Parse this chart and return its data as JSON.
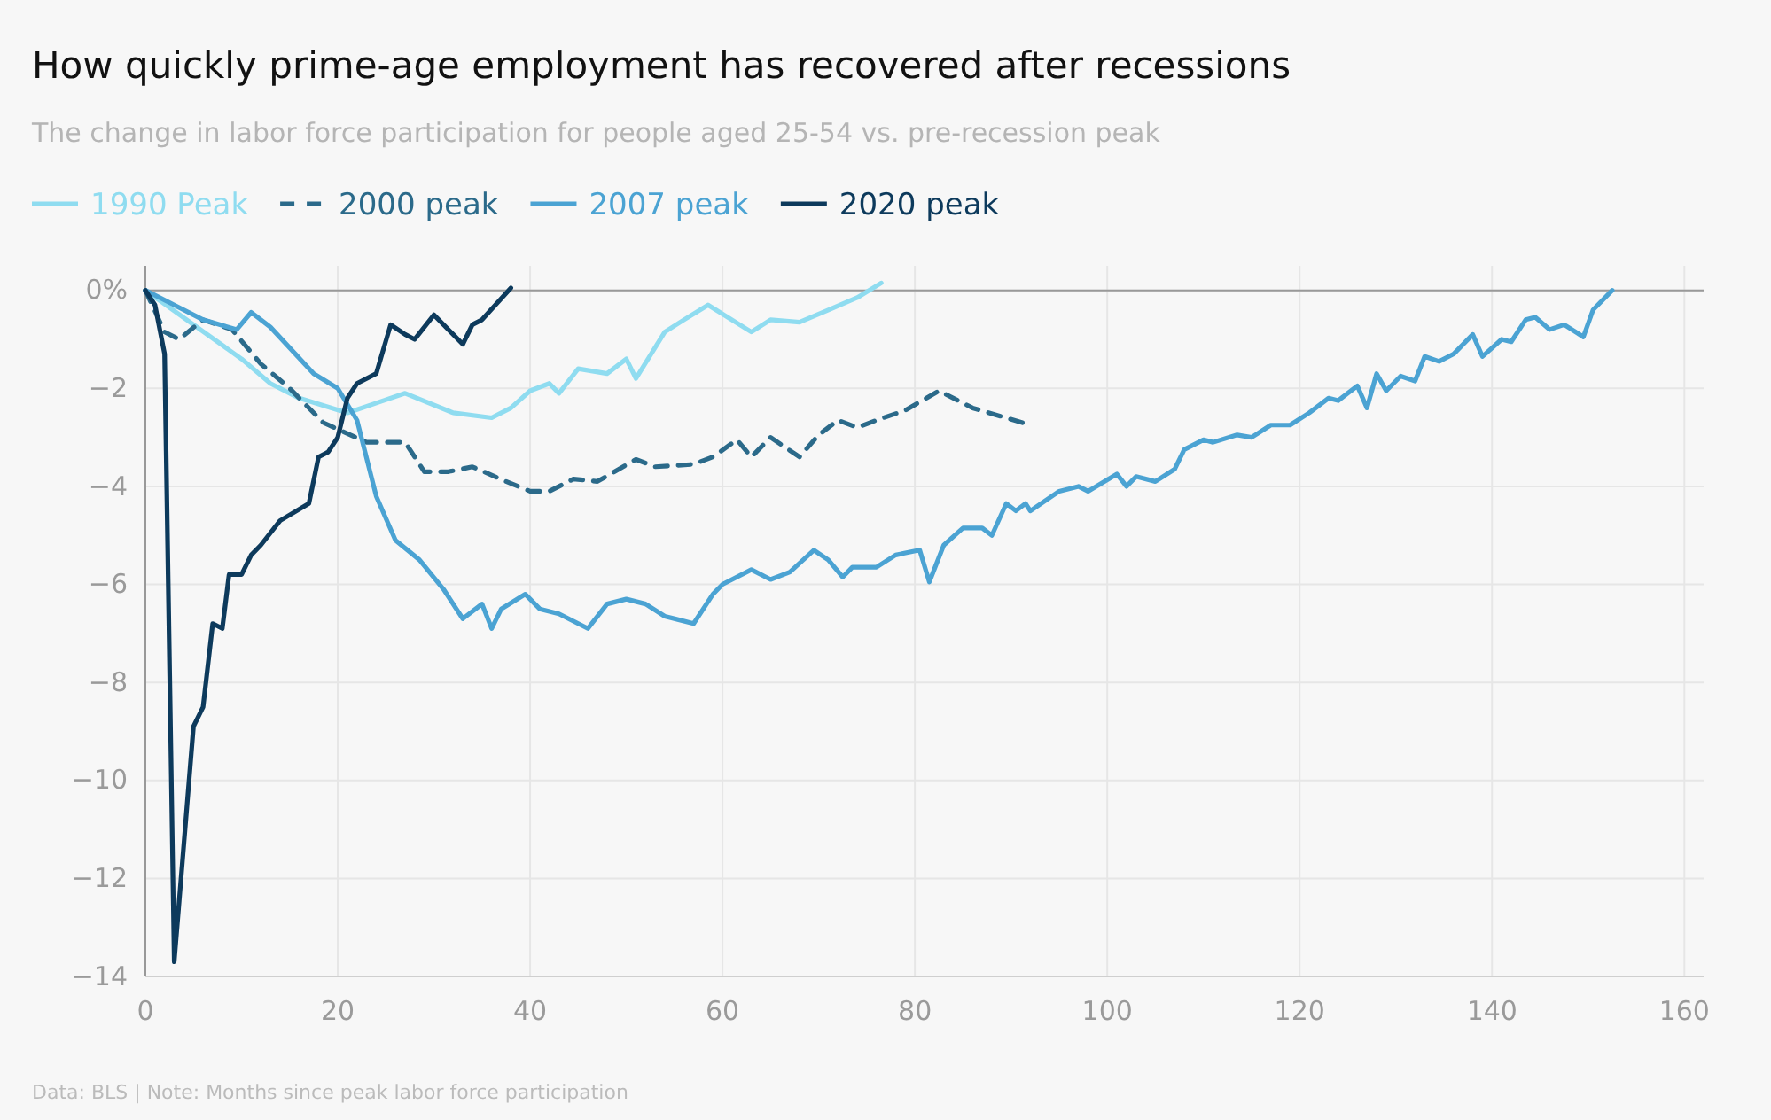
{
  "chart_data": {
    "type": "line",
    "title": "How quickly prime-age employment has recovered after recessions",
    "subtitle": "The change in labor force participation for people aged 25-54 vs. pre-recession peak",
    "annotations": [
      "Data: BLS | Note: Months since peak labor force participation"
    ],
    "xlim": [
      0,
      162
    ],
    "xticks": [
      0,
      20,
      40,
      60,
      80,
      100,
      120,
      140,
      160
    ],
    "ylim": [
      -14,
      0.5
    ],
    "yticks": [
      {
        "value": 0,
        "label": "0%"
      },
      -2,
      -4,
      -6,
      -8,
      -10,
      -12,
      -14
    ],
    "grid": true,
    "legend": "top left",
    "line_style": "solid",
    "marker": "none",
    "series": [
      {
        "name": "1990 Peak",
        "color": "#8fdcf0",
        "x": [
          0,
          5,
          10,
          13,
          16,
          21,
          24,
          27,
          32,
          36,
          38,
          40,
          42,
          43,
          45,
          48,
          50,
          51,
          54,
          56,
          58.5,
          63,
          65,
          68,
          71,
          74,
          76.5
        ],
        "values": [
          0,
          -0.7,
          -1.4,
          -1.9,
          -2.2,
          -2.5,
          -2.3,
          -2.1,
          -2.5,
          -2.6,
          -2.4,
          -2.05,
          -1.9,
          -2.1,
          -1.6,
          -1.7,
          -1.4,
          -1.8,
          -0.85,
          -0.6,
          -0.3,
          -0.85,
          -0.6,
          -0.65,
          -0.4,
          -0.15,
          0.15
        ]
      },
      {
        "name": "2000 peak",
        "color": "#2b6a8a",
        "line_style": "dashed",
        "x": [
          0,
          2,
          3.5,
          6,
          9,
          12,
          15,
          18.5,
          23,
          27,
          29,
          31.5,
          34,
          37.5,
          40,
          42,
          44.5,
          47,
          51,
          53,
          57,
          59,
          61.5,
          63,
          65,
          68,
          70,
          72,
          74,
          76,
          79,
          82.5,
          86,
          92
        ],
        "values": [
          0,
          -0.85,
          -1.0,
          -0.6,
          -0.8,
          -1.5,
          -2.0,
          -2.7,
          -3.1,
          -3.1,
          -3.7,
          -3.7,
          -3.6,
          -3.9,
          -4.1,
          -4.1,
          -3.85,
          -3.9,
          -3.45,
          -3.6,
          -3.55,
          -3.4,
          -3.05,
          -3.4,
          -3.0,
          -3.4,
          -2.95,
          -2.65,
          -2.8,
          -2.65,
          -2.45,
          -2.05,
          -2.4,
          -2.75
        ]
      },
      {
        "name": "2007 peak",
        "color": "#4ba3d3",
        "x": [
          0,
          3,
          6,
          9.5,
          11,
          13,
          17.5,
          20,
          22,
          24,
          26,
          28.5,
          31,
          33,
          35,
          36,
          37,
          39.5,
          41,
          43,
          46,
          48,
          50,
          52,
          54,
          57,
          59,
          60,
          63,
          65,
          67,
          69.5,
          71,
          72.5,
          73.5,
          76,
          78,
          80.5,
          81.5,
          83,
          85,
          87,
          88,
          89.5,
          90.5,
          91.5,
          92,
          95,
          97,
          98,
          101,
          102,
          103,
          105,
          107,
          108,
          110,
          111,
          113.5,
          115,
          117,
          119,
          121,
          123,
          124,
          126,
          127,
          128,
          129,
          130.5,
          132,
          133,
          134.5,
          136,
          138,
          139,
          141,
          142,
          143.5,
          144.5,
          146,
          147.5,
          149.5,
          150.5,
          152.5
        ],
        "values": [
          0,
          -0.3,
          -0.6,
          -0.8,
          -0.45,
          -0.75,
          -1.7,
          -2.0,
          -2.65,
          -4.2,
          -5.1,
          -5.5,
          -6.1,
          -6.7,
          -6.4,
          -6.9,
          -6.5,
          -6.2,
          -6.5,
          -6.6,
          -6.9,
          -6.4,
          -6.3,
          -6.4,
          -6.65,
          -6.8,
          -6.2,
          -6.0,
          -5.7,
          -5.9,
          -5.75,
          -5.3,
          -5.5,
          -5.85,
          -5.65,
          -5.65,
          -5.4,
          -5.3,
          -5.95,
          -5.2,
          -4.85,
          -4.85,
          -5.0,
          -4.35,
          -4.5,
          -4.35,
          -4.5,
          -4.1,
          -4.0,
          -4.1,
          -3.75,
          -4.0,
          -3.8,
          -3.9,
          -3.65,
          -3.25,
          -3.05,
          -3.1,
          -2.95,
          -3.0,
          -2.75,
          -2.75,
          -2.5,
          -2.2,
          -2.25,
          -1.95,
          -2.4,
          -1.7,
          -2.05,
          -1.75,
          -1.85,
          -1.35,
          -1.45,
          -1.3,
          -0.9,
          -1.35,
          -1.0,
          -1.05,
          -0.6,
          -0.55,
          -0.8,
          -0.7,
          -0.95,
          -0.4,
          0.0
        ]
      },
      {
        "name": "2020 peak",
        "color": "#0d3a5c",
        "x": [
          0,
          1,
          2,
          3,
          5,
          6,
          7,
          8,
          8.7,
          10,
          11,
          12,
          14,
          17,
          18,
          19,
          20,
          21,
          22,
          24,
          25.5,
          27,
          28,
          30,
          32,
          33,
          34,
          35,
          38
        ],
        "values": [
          0,
          -0.3,
          -1.3,
          -13.7,
          -8.9,
          -8.5,
          -6.8,
          -6.9,
          -5.8,
          -5.8,
          -5.4,
          -5.2,
          -4.7,
          -4.35,
          -3.4,
          -3.3,
          -3.0,
          -2.2,
          -1.9,
          -1.7,
          -0.7,
          -0.9,
          -1.0,
          -0.5,
          -0.9,
          -1.1,
          -0.7,
          -0.6,
          0.05
        ]
      }
    ]
  }
}
